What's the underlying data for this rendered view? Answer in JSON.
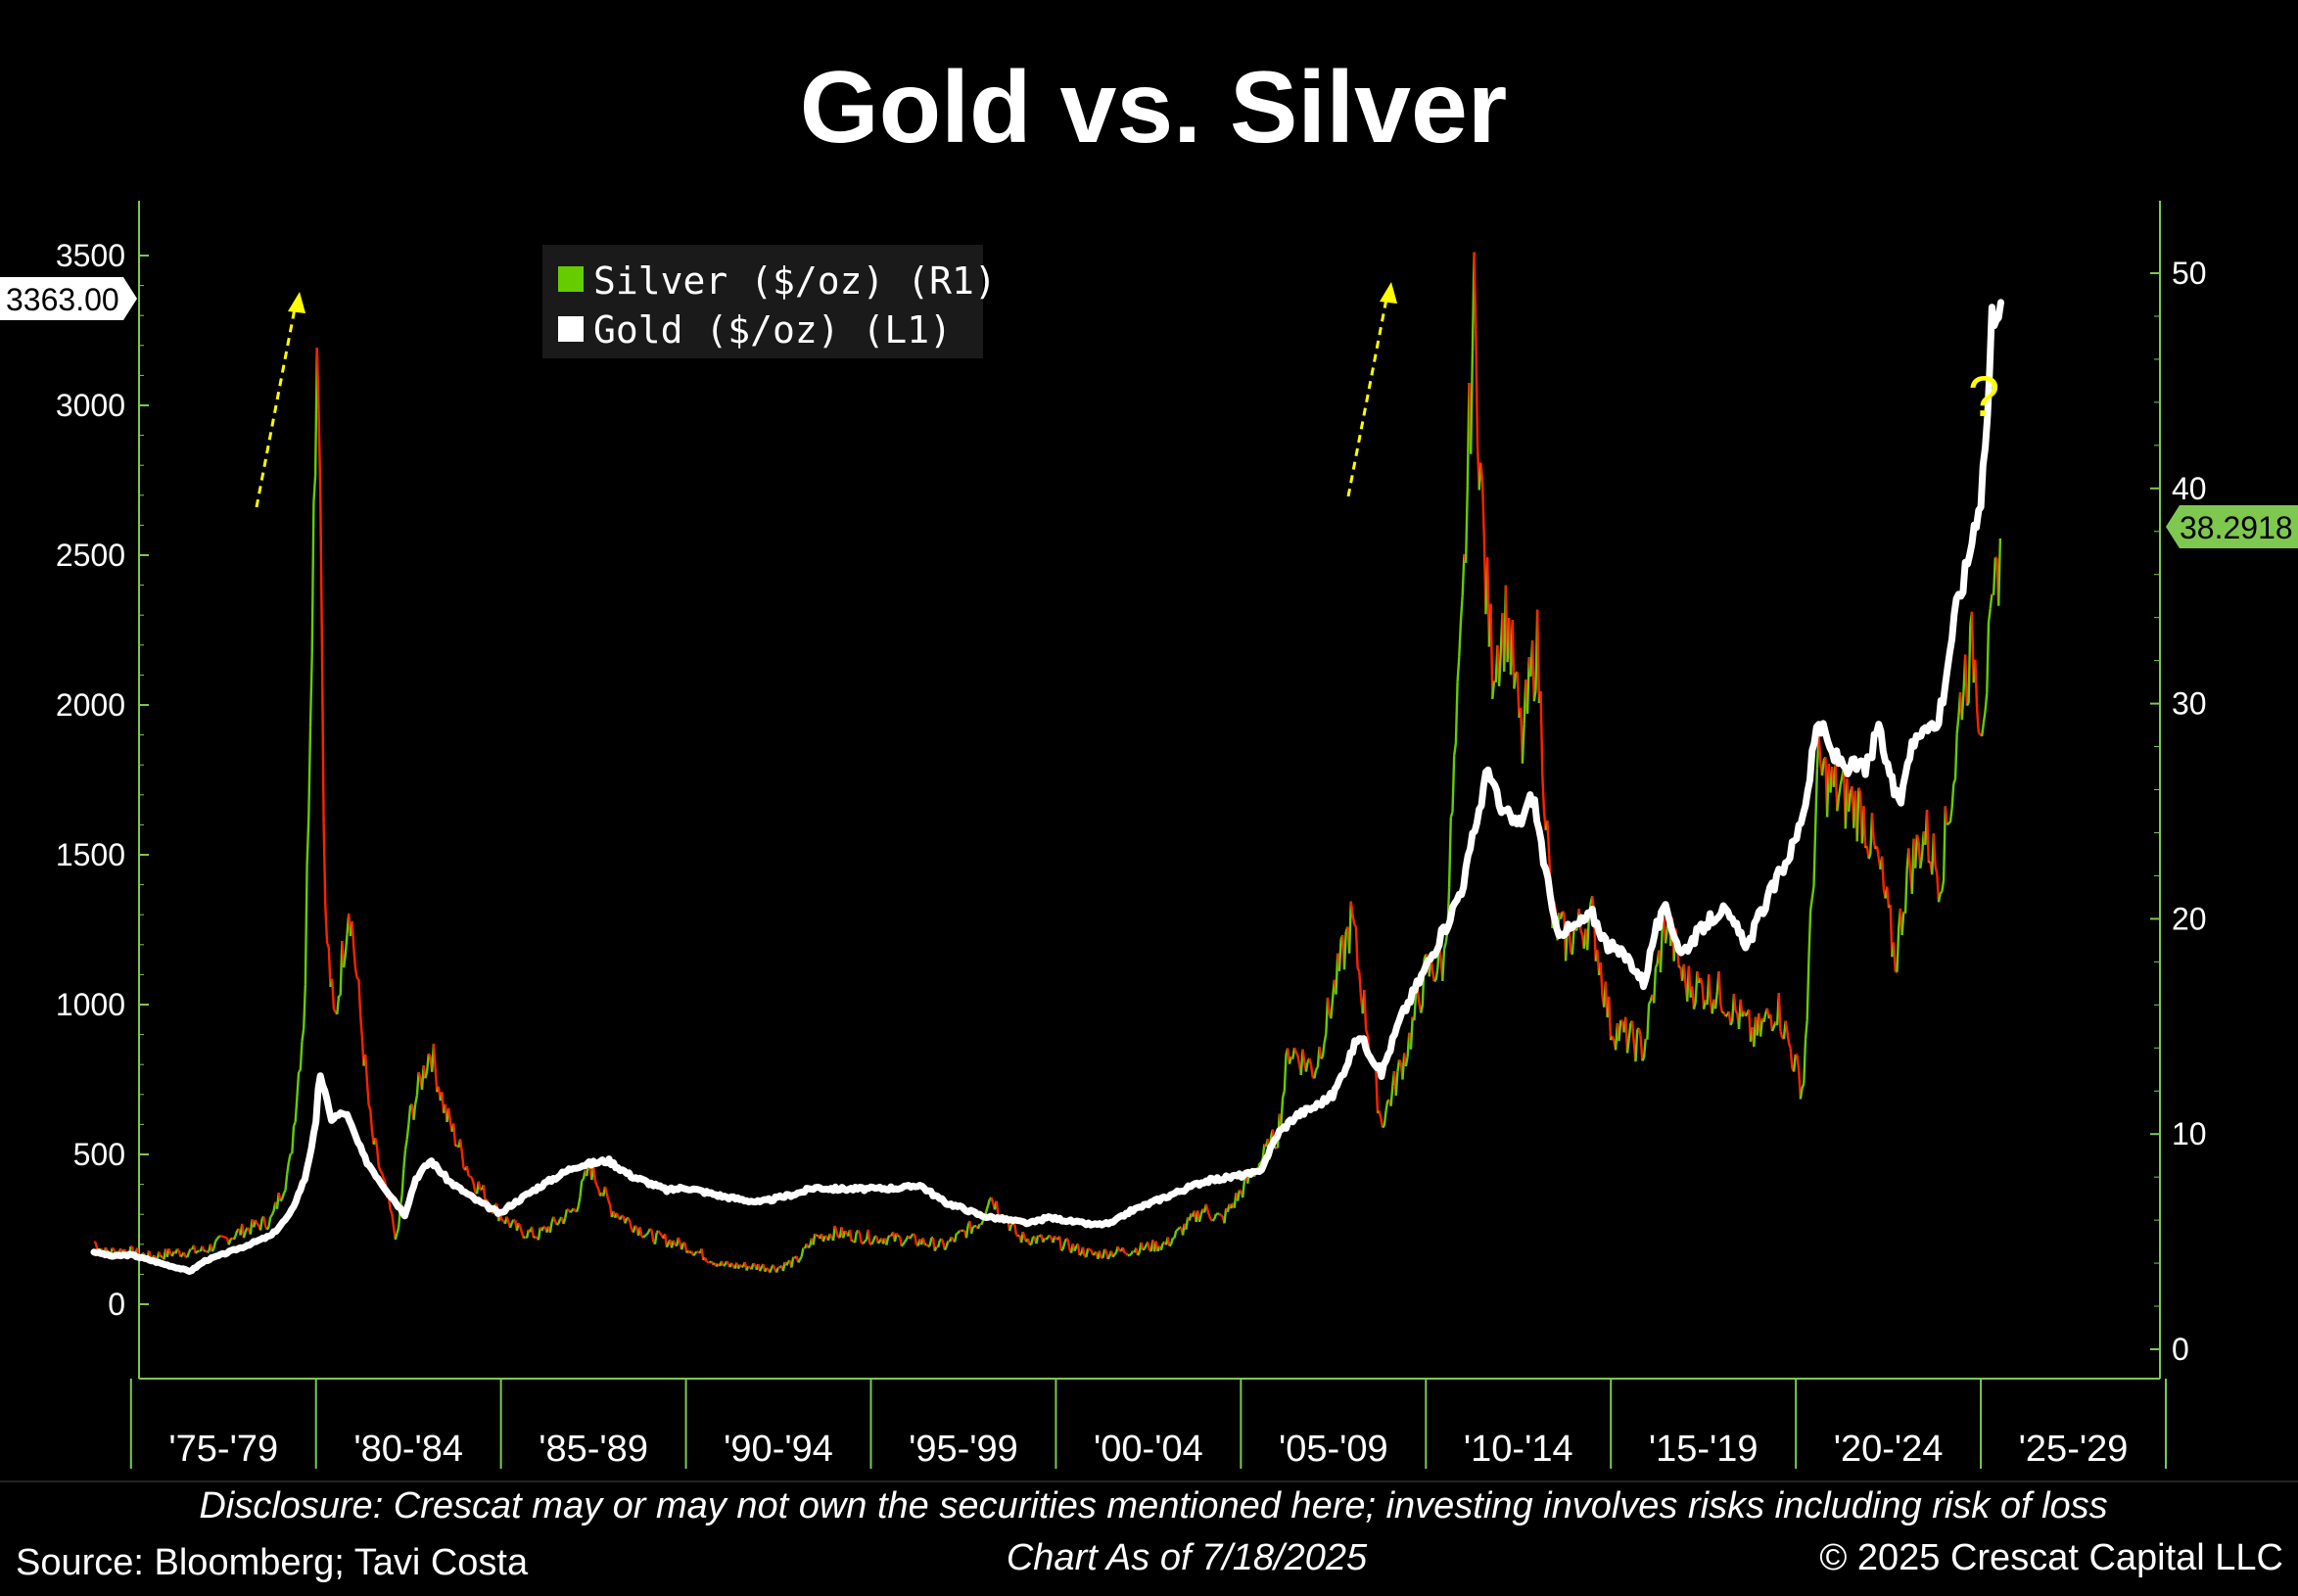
{
  "title": "Gold vs. Silver",
  "legend": {
    "silver": "Silver ($/oz) (R1)",
    "gold": "Gold ($/oz) (L1)"
  },
  "last_values": {
    "gold": "3363.00",
    "silver": "38.2918"
  },
  "annotation_question": "?",
  "footer": {
    "disclosure": "Disclosure: Crescat may or may not own the securities mentioned here; investing involves risks including risk of loss",
    "source": "Source: Bloomberg; Tavi Costa",
    "chart_as_of": "Chart As of 7/18/2025",
    "copyright": "© 2025 Crescat Capital LLC"
  },
  "colors": {
    "background": "#000000",
    "gold_line": "#ffffff",
    "silver_up": "#66cc00",
    "silver_down": "#ff2200",
    "right_axis": "#66cc00",
    "arrow": "#ffff00"
  },
  "chart_data": {
    "type": "line",
    "title": "Gold vs. Silver",
    "x_range": [
      1974.0,
      2030.0
    ],
    "x_tick_labels": [
      "'75-'79",
      "'80-'84",
      "'85-'89",
      "'90-'94",
      "'95-'99",
      "'00-'04",
      "'05-'09",
      "'10-'14",
      "'15-'19",
      "'20-'24",
      "'25-'29"
    ],
    "left_axis": {
      "ticks": [
        0,
        500,
        1000,
        1500,
        2000,
        2500,
        3000,
        3500
      ],
      "range": [
        -250,
        3700
      ]
    },
    "right_axis": {
      "ticks": [
        0,
        10,
        20,
        30,
        40,
        50
      ],
      "range": [
        0,
        52.5
      ]
    },
    "series": [
      {
        "name": "Gold ($/oz) (L1)",
        "axis": "left",
        "x": [
          1974.0,
          1974.5,
          1975.0,
          1976.0,
          1976.6,
          1977.0,
          1978.0,
          1978.8,
          1979.3,
          1979.7,
          1980.0,
          1980.1,
          1980.4,
          1980.8,
          1981.3,
          1981.8,
          1982.4,
          1982.7,
          1983.1,
          1983.6,
          1984.3,
          1985.0,
          1985.2,
          1986.0,
          1987.0,
          1987.9,
          1988.5,
          1989.5,
          1990.0,
          1991.0,
          1992.0,
          1993.0,
          1993.5,
          1994.0,
          1995.0,
          1996.0,
          1996.3,
          1997.0,
          1997.5,
          1998.0,
          1999.3,
          1999.8,
          2000.5,
          2001.0,
          2001.5,
          2002.0,
          2003.0,
          2004.0,
          2005.0,
          2005.5,
          2006.0,
          2006.5,
          2007.0,
          2007.5,
          2008.2,
          2008.8,
          2009.3,
          2009.9,
          2010.5,
          2011.0,
          2011.7,
          2012.0,
          2012.5,
          2012.9,
          2013.3,
          2013.5,
          2013.9,
          2014.5,
          2014.9,
          2015.5,
          2015.9,
          2016.2,
          2016.5,
          2016.9,
          2017.5,
          2018.0,
          2018.7,
          2019.0,
          2019.5,
          2020.0,
          2020.3,
          2020.6,
          2021.0,
          2021.5,
          2022.0,
          2022.2,
          2022.8,
          2023.0,
          2023.5,
          2023.8,
          2024.0,
          2024.3,
          2024.6,
          2024.9,
          2025.0,
          2025.2,
          2025.3,
          2025.55
        ],
        "values": [
          175,
          160,
          165,
          130,
          110,
          145,
          190,
          230,
          300,
          420,
          600,
          780,
          620,
          640,
          490,
          400,
          300,
          420,
          480,
          410,
          350,
          300,
          325,
          390,
          460,
          480,
          430,
          380,
          390,
          360,
          340,
          370,
          390,
          385,
          385,
          390,
          400,
          340,
          320,
          295,
          270,
          290,
          275,
          265,
          270,
          310,
          360,
          410,
          430,
          440,
          570,
          630,
          660,
          700,
          900,
          770,
          950,
          1100,
          1250,
          1400,
          1800,
          1650,
          1600,
          1700,
          1400,
          1250,
          1250,
          1300,
          1200,
          1150,
          1070,
          1250,
          1320,
          1170,
          1260,
          1320,
          1200,
          1290,
          1420,
          1550,
          1700,
          1950,
          1830,
          1790,
          1800,
          1930,
          1650,
          1820,
          1950,
          1920,
          2050,
          2300,
          2450,
          2650,
          2700,
          3000,
          3300,
          3363
        ]
      },
      {
        "name": "Silver ($/oz) (R1)",
        "axis": "right",
        "x": [
          1974.0,
          1974.3,
          1974.8,
          1975.5,
          1976.2,
          1977.0,
          1978.0,
          1978.8,
          1979.3,
          1979.7,
          1979.9,
          1980.05,
          1980.1,
          1980.25,
          1980.5,
          1980.9,
          1981.5,
          1982.2,
          1982.5,
          1983.1,
          1983.5,
          1984.2,
          1985.0,
          1985.5,
          1986.0,
          1987.0,
          1987.4,
          1988.0,
          1989.0,
          1990.0,
          1991.0,
          1992.5,
          1993.0,
          1993.5,
          1994.0,
          1995.0,
          1996.0,
          1997.0,
          1998.0,
          1998.2,
          1999.0,
          2000.0,
          2001.0,
          2002.0,
          2003.0,
          2004.0,
          2004.5,
          2005.0,
          2006.0,
          2006.3,
          2007.0,
          2008.0,
          2008.2,
          2008.8,
          2009.5,
          2010.0,
          2010.5,
          2011.0,
          2011.3,
          2011.6,
          2011.8,
          2012.2,
          2012.6,
          2013.0,
          2013.4,
          2013.8,
          2014.5,
          2015.0,
          2015.9,
          2016.5,
          2017.0,
          2018.0,
          2018.9,
          2019.5,
          2020.2,
          2020.6,
          2021.0,
          2021.8,
          2022.3,
          2022.7,
          2023.0,
          2023.5,
          2023.9,
          2024.3,
          2024.5,
          2024.8,
          2025.0,
          2025.3,
          2025.55
        ],
        "values": [
          5.0,
          4.5,
          4.6,
          4.3,
          4.5,
          4.6,
          5.5,
          6.0,
          8.5,
          16.0,
          35.0,
          49.0,
          43.0,
          20.0,
          15.0,
          21.0,
          10.0,
          5.0,
          10.5,
          14.0,
          11.0,
          8.0,
          6.2,
          5.5,
          5.3,
          6.5,
          8.5,
          6.5,
          5.3,
          4.8,
          3.9,
          3.8,
          4.1,
          5.2,
          5.4,
          5.2,
          5.1,
          4.8,
          6.0,
          7.2,
          5.2,
          5.0,
          4.4,
          4.6,
          4.9,
          6.5,
          6.0,
          7.3,
          10.0,
          14.0,
          13.0,
          20.0,
          17.5,
          10.5,
          14.0,
          17.5,
          18.0,
          34.0,
          48.5,
          36.0,
          32.0,
          34.0,
          28.0,
          33.0,
          20.0,
          19.0,
          20.0,
          15.0,
          14.0,
          20.0,
          17.0,
          16.5,
          14.5,
          16.0,
          12.0,
          27.0,
          26.0,
          25.0,
          22.0,
          18.0,
          22.0,
          24.0,
          22.0,
          27.0,
          31.0,
          32.5,
          29.5,
          33.0,
          38.2918
        ]
      }
    ]
  }
}
